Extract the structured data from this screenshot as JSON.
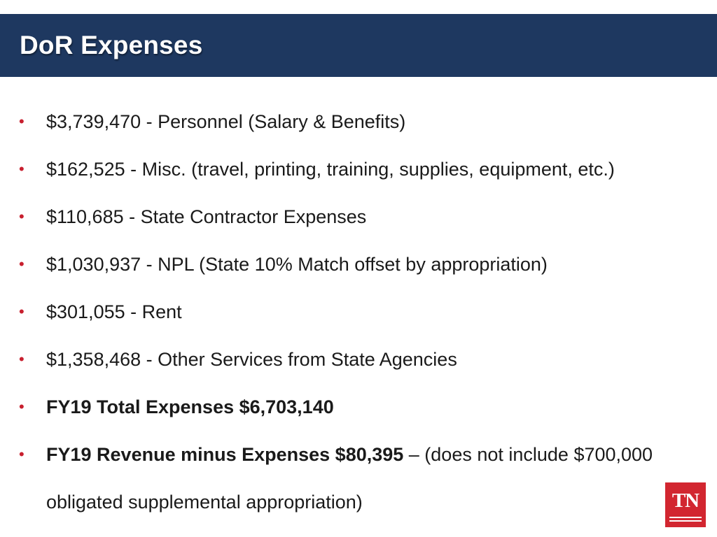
{
  "slide": {
    "title": "DoR Expenses",
    "colors": {
      "title_bar": "#1e3860",
      "bullet": "#c8202f",
      "logo": "#d22630"
    }
  },
  "bullets": [
    {
      "text": "$3,739,470 - Personnel (Salary & Benefits)"
    },
    {
      "text": "$162,525 - Misc. (travel, printing, training, supplies, equipment, etc.)"
    },
    {
      "text": "$110,685 - State Contractor Expenses"
    },
    {
      "text": "$1,030,937 - NPL (State 10% Match offset by appropriation)"
    },
    {
      "text": "$301,055 - Rent"
    },
    {
      "text": "$1,358,468 - Other Services from State Agencies"
    },
    {
      "text": "FY19 Total Expenses $6,703,140"
    },
    {
      "bold_text": "FY19 Revenue minus Expenses $80,395",
      "text": " – (does not include $700,000",
      "continuation": "obligated supplemental appropriation)"
    }
  ],
  "bullet_glyph": "•",
  "logo": {
    "text": "TN",
    "icon": "tn-state-logo-icon"
  }
}
